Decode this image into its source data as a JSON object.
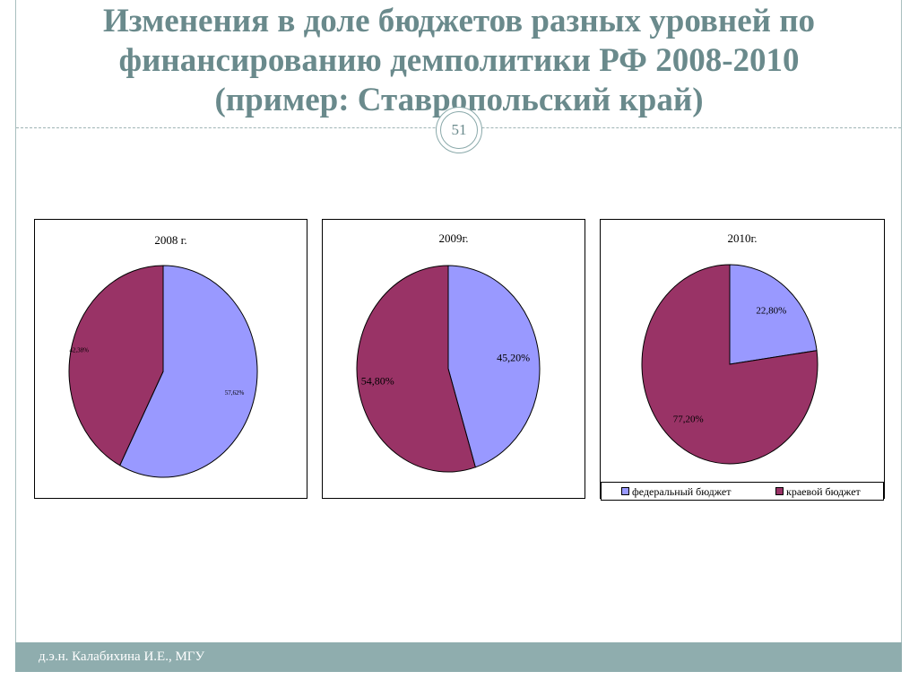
{
  "slide": {
    "title_lines": [
      "Изменения  в доле бюджетов разных уровней по",
      "финансированию демполитики РФ 2008-2010",
      "(пример: Ставропольский край)"
    ],
    "page_number": "51",
    "footer": "д.э.н. Калабихина И.Е., МГУ"
  },
  "colors": {
    "federal": "#9999ff",
    "regional": "#993366",
    "theme_text": "#6a8a8c",
    "footer_bg": "#8fadae"
  },
  "chart_data": [
    {
      "type": "pie",
      "title": "2008 г.",
      "slices": [
        {
          "label": "федеральный бюджет",
          "value": 57.62,
          "display": "57,62%",
          "color": "#9999ff"
        },
        {
          "label": "краевой бюджет",
          "value": 42.38,
          "display": "42,38%",
          "color": "#993366"
        }
      ]
    },
    {
      "type": "pie",
      "title": "2009г.",
      "slices": [
        {
          "label": "федеральный бюджет",
          "value": 45.2,
          "display": "45,20%",
          "color": "#9999ff"
        },
        {
          "label": "краевой бюджет",
          "value": 54.8,
          "display": "54,80%",
          "color": "#993366"
        }
      ]
    },
    {
      "type": "pie",
      "title": "2010г.",
      "slices": [
        {
          "label": "федеральный бюджет",
          "value": 22.8,
          "display": "22,80%",
          "color": "#9999ff"
        },
        {
          "label": "краевой бюджет",
          "value": 77.2,
          "display": "77,20%",
          "color": "#993366"
        }
      ]
    }
  ],
  "legend": {
    "items": [
      {
        "label": "федеральный бюджет",
        "color": "#9999ff"
      },
      {
        "label": "краевой бюджет",
        "color": "#993366"
      }
    ]
  }
}
